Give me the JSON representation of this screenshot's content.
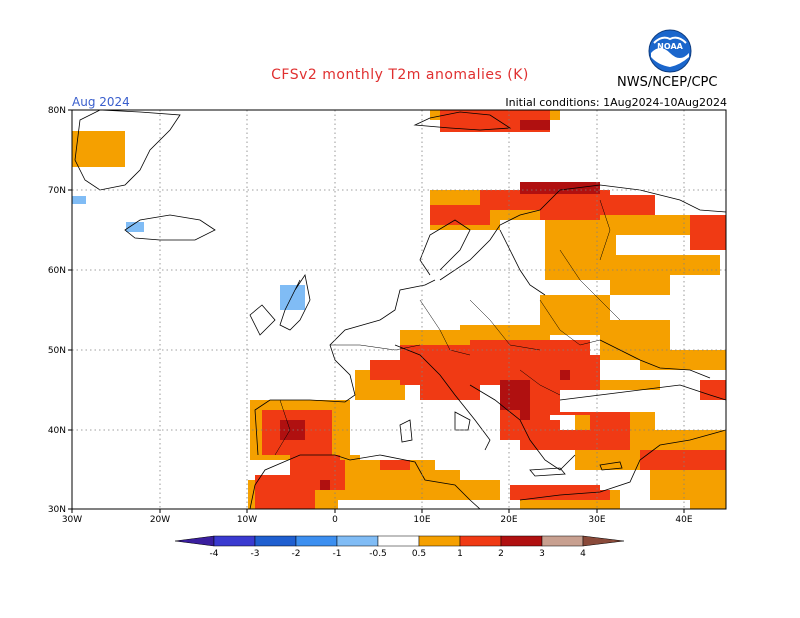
{
  "header": {
    "title": "CFSv2 monthly T2m anomalies (K)",
    "period": "Aug 2024",
    "initial_conditions": "Initial conditions: 1Aug2024-10Aug2024",
    "agency": "NWS/NCEP/CPC",
    "logo_text": "NOAA"
  },
  "map": {
    "lat_labels": [
      "80N",
      "70N",
      "60N",
      "50N",
      "40N",
      "30N"
    ],
    "lon_labels": [
      "30W",
      "20W",
      "10W",
      "0",
      "10E",
      "20E",
      "30E",
      "40E"
    ],
    "lat_range": [
      30,
      80
    ],
    "lon_range": [
      -30,
      45
    ]
  },
  "colorbar": {
    "labels": [
      "-4",
      "-3",
      "-2",
      "-1",
      "-0.5",
      "0.5",
      "1",
      "2",
      "3",
      "4"
    ],
    "colors": {
      "lt_-4": "#3a1e9e",
      "-4_-3": "#3a3ad0",
      "-3_-2": "#1f5fd0",
      "-2_-1": "#3c8ff0",
      "-1_-0.5": "#80bcf5",
      "-0.5_0.5": "#ffffff",
      "0.5_1": "#f5a000",
      "1_2": "#f03a14",
      "2_3": "#b01010",
      "3_4": "#c8a090",
      "gt_4": "#8a4a3a"
    }
  },
  "colors": {
    "title": "#e03030",
    "period": "#3a5fcd",
    "grid": "#808080"
  }
}
